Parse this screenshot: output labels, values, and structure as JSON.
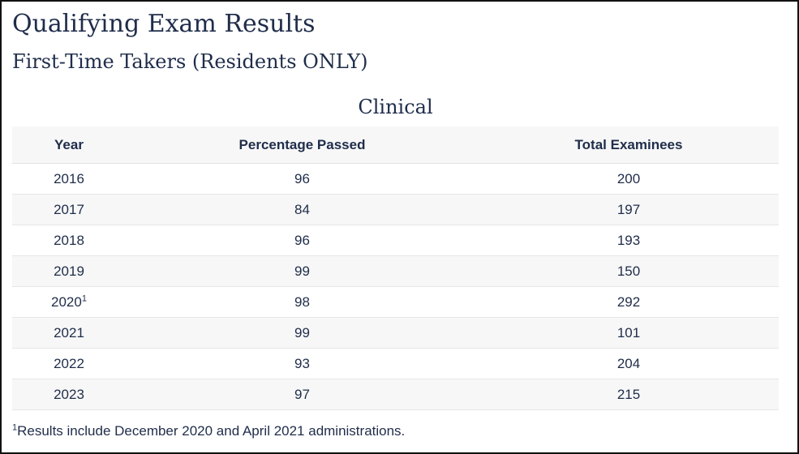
{
  "page": {
    "title": "Qualifying Exam Results",
    "subtitle": "First-Time Takers (Residents ONLY)"
  },
  "table": {
    "caption": "Clinical",
    "headers": [
      "Year",
      "Percentage Passed",
      "Total Examinees"
    ],
    "rows": [
      {
        "year": "2016",
        "footnote_marker": "",
        "percentage_passed": "96",
        "total_examinees": "200"
      },
      {
        "year": "2017",
        "footnote_marker": "",
        "percentage_passed": "84",
        "total_examinees": "197"
      },
      {
        "year": "2018",
        "footnote_marker": "",
        "percentage_passed": "96",
        "total_examinees": "193"
      },
      {
        "year": "2019",
        "footnote_marker": "",
        "percentage_passed": "99",
        "total_examinees": "150"
      },
      {
        "year": "2020",
        "footnote_marker": "1",
        "percentage_passed": "98",
        "total_examinees": "292"
      },
      {
        "year": "2021",
        "footnote_marker": "",
        "percentage_passed": "99",
        "total_examinees": "101"
      },
      {
        "year": "2022",
        "footnote_marker": "",
        "percentage_passed": "93",
        "total_examinees": "204"
      },
      {
        "year": "2023",
        "footnote_marker": "",
        "percentage_passed": "97",
        "total_examinees": "215"
      }
    ]
  },
  "footnote": {
    "marker": "1",
    "text": "Results include December 2020 and April 2021 administrations."
  }
}
